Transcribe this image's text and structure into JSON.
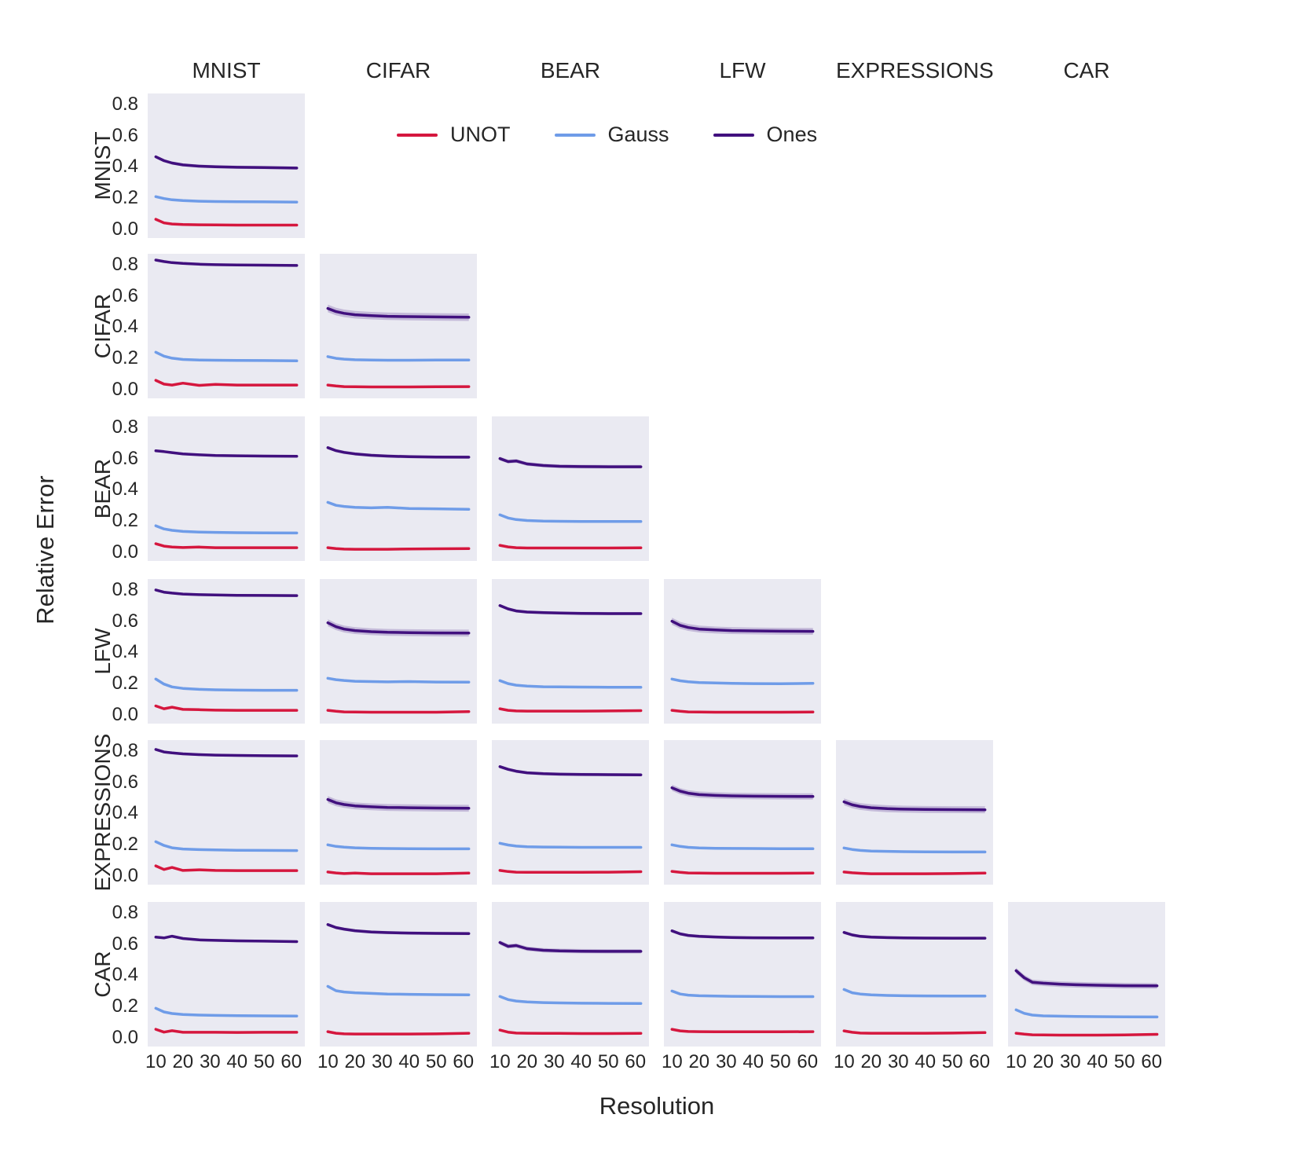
{
  "figure_title": "",
  "legend": [
    {
      "label": "UNOT",
      "color": "#d5173e"
    },
    {
      "label": "Gauss",
      "color": "#6f9ce8"
    },
    {
      "label": "Ones",
      "color": "#41107e"
    }
  ],
  "style": {
    "plot_background": "#eaeaf2",
    "page_background": "#ffffff",
    "text_color": "#262626",
    "band_opacity": 0.22,
    "line_width": 3.5
  },
  "chart_data": {
    "type": "line",
    "x_label": "Resolution",
    "y_label": "Relative Error",
    "columns": [
      "MNIST",
      "CIFAR",
      "BEAR",
      "LFW",
      "EXPRESSIONS",
      "CAR"
    ],
    "rows": [
      "MNIST",
      "CIFAR",
      "BEAR",
      "LFW",
      "EXPRESSIONS",
      "CAR"
    ],
    "grid": false,
    "legend_position": "top-center",
    "xlim": [
      7,
      65
    ],
    "ylim": [
      -0.055,
      0.87
    ],
    "x_ticks": [
      {
        "label": "10",
        "value": 10
      },
      {
        "label": "20",
        "value": 20
      },
      {
        "label": "30",
        "value": 30
      },
      {
        "label": "40",
        "value": 40
      },
      {
        "label": "50",
        "value": 50
      },
      {
        "label": "60",
        "value": 60
      }
    ],
    "y_ticks": [
      {
        "label": "0.8",
        "value": 0.8
      },
      {
        "label": "0.6",
        "value": 0.6
      },
      {
        "label": "0.4",
        "value": 0.4
      },
      {
        "label": "0.2",
        "value": 0.2
      },
      {
        "label": "0.0",
        "value": 0.0
      }
    ],
    "x": [
      10,
      13,
      16,
      20,
      26,
      32,
      40,
      50,
      62
    ],
    "cells": [
      {
        "row": "MNIST",
        "col": "MNIST",
        "band": 0.01,
        "UNOT": [
          0.065,
          0.042,
          0.035,
          0.032,
          0.03,
          0.029,
          0.028,
          0.028,
          0.028
        ],
        "Gauss": [
          0.21,
          0.198,
          0.19,
          0.185,
          0.181,
          0.179,
          0.178,
          0.177,
          0.175
        ],
        "Ones": [
          0.465,
          0.44,
          0.425,
          0.413,
          0.405,
          0.401,
          0.398,
          0.396,
          0.393
        ]
      },
      {
        "row": "CIFAR",
        "col": "MNIST",
        "band": 0.008,
        "UNOT": [
          0.06,
          0.036,
          0.03,
          0.042,
          0.028,
          0.034,
          0.03,
          0.03,
          0.03
        ],
        "Gauss": [
          0.24,
          0.215,
          0.202,
          0.194,
          0.19,
          0.189,
          0.188,
          0.187,
          0.185
        ],
        "Ones": [
          0.83,
          0.82,
          0.813,
          0.808,
          0.803,
          0.8,
          0.798,
          0.797,
          0.795
        ]
      },
      {
        "row": "CIFAR",
        "col": "CIFAR",
        "band": 0.024,
        "UNOT": [
          0.03,
          0.024,
          0.02,
          0.019,
          0.018,
          0.018,
          0.018,
          0.019,
          0.02
        ],
        "Gauss": [
          0.212,
          0.201,
          0.196,
          0.192,
          0.19,
          0.189,
          0.189,
          0.19,
          0.19
        ],
        "Ones": [
          0.52,
          0.5,
          0.489,
          0.48,
          0.474,
          0.47,
          0.468,
          0.466,
          0.464
        ]
      },
      {
        "row": "BEAR",
        "col": "MNIST",
        "band": 0.008,
        "UNOT": [
          0.055,
          0.04,
          0.034,
          0.031,
          0.034,
          0.03,
          0.03,
          0.03,
          0.03
        ],
        "Gauss": [
          0.17,
          0.15,
          0.141,
          0.134,
          0.13,
          0.128,
          0.126,
          0.125,
          0.124
        ],
        "Ones": [
          0.65,
          0.645,
          0.638,
          0.63,
          0.624,
          0.62,
          0.618,
          0.616,
          0.615
        ]
      },
      {
        "row": "BEAR",
        "col": "CIFAR",
        "band": 0.01,
        "UNOT": [
          0.03,
          0.024,
          0.021,
          0.02,
          0.02,
          0.02,
          0.022,
          0.023,
          0.024
        ],
        "Gauss": [
          0.32,
          0.301,
          0.294,
          0.288,
          0.285,
          0.288,
          0.281,
          0.279,
          0.276
        ],
        "Ones": [
          0.67,
          0.651,
          0.64,
          0.63,
          0.621,
          0.616,
          0.612,
          0.61,
          0.609
        ]
      },
      {
        "row": "BEAR",
        "col": "BEAR",
        "band": 0.012,
        "UNOT": [
          0.045,
          0.035,
          0.03,
          0.028,
          0.028,
          0.028,
          0.028,
          0.028,
          0.029
        ],
        "Gauss": [
          0.24,
          0.22,
          0.21,
          0.204,
          0.2,
          0.199,
          0.198,
          0.198,
          0.198
        ],
        "Ones": [
          0.6,
          0.581,
          0.585,
          0.566,
          0.556,
          0.551,
          0.549,
          0.548,
          0.548
        ]
      },
      {
        "row": "LFW",
        "col": "MNIST",
        "band": 0.008,
        "UNOT": [
          0.058,
          0.04,
          0.05,
          0.036,
          0.034,
          0.031,
          0.03,
          0.03,
          0.03
        ],
        "Gauss": [
          0.23,
          0.198,
          0.18,
          0.17,
          0.164,
          0.161,
          0.159,
          0.158,
          0.158
        ],
        "Ones": [
          0.8,
          0.786,
          0.78,
          0.774,
          0.77,
          0.768,
          0.766,
          0.765,
          0.764
        ]
      },
      {
        "row": "LFW",
        "col": "CIFAR",
        "band": 0.022,
        "UNOT": [
          0.03,
          0.024,
          0.02,
          0.019,
          0.018,
          0.018,
          0.018,
          0.018,
          0.022
        ],
        "Gauss": [
          0.235,
          0.226,
          0.221,
          0.216,
          0.214,
          0.212,
          0.214,
          0.211,
          0.21
        ],
        "Ones": [
          0.59,
          0.565,
          0.55,
          0.54,
          0.533,
          0.529,
          0.527,
          0.525,
          0.524
        ]
      },
      {
        "row": "LFW",
        "col": "BEAR",
        "band": 0.01,
        "UNOT": [
          0.04,
          0.03,
          0.026,
          0.025,
          0.025,
          0.025,
          0.025,
          0.026,
          0.028
        ],
        "Gauss": [
          0.22,
          0.201,
          0.191,
          0.185,
          0.181,
          0.18,
          0.179,
          0.178,
          0.178
        ],
        "Ones": [
          0.7,
          0.679,
          0.666,
          0.659,
          0.655,
          0.653,
          0.65,
          0.649,
          0.649
        ]
      },
      {
        "row": "LFW",
        "col": "LFW",
        "band": 0.022,
        "UNOT": [
          0.03,
          0.024,
          0.02,
          0.019,
          0.018,
          0.018,
          0.018,
          0.018,
          0.019
        ],
        "Gauss": [
          0.23,
          0.219,
          0.213,
          0.208,
          0.205,
          0.203,
          0.201,
          0.2,
          0.203
        ],
        "Ones": [
          0.6,
          0.574,
          0.56,
          0.55,
          0.544,
          0.54,
          0.538,
          0.536,
          0.535
        ]
      },
      {
        "row": "EXPRESSIONS",
        "col": "MNIST",
        "band": 0.008,
        "UNOT": [
          0.065,
          0.042,
          0.055,
          0.036,
          0.04,
          0.036,
          0.035,
          0.035,
          0.035
        ],
        "Gauss": [
          0.22,
          0.196,
          0.181,
          0.173,
          0.169,
          0.167,
          0.165,
          0.164,
          0.163
        ],
        "Ones": [
          0.81,
          0.794,
          0.788,
          0.782,
          0.777,
          0.774,
          0.772,
          0.77,
          0.769
        ]
      },
      {
        "row": "EXPRESSIONS",
        "col": "CIFAR",
        "band": 0.022,
        "UNOT": [
          0.026,
          0.02,
          0.016,
          0.019,
          0.015,
          0.015,
          0.015,
          0.015,
          0.019
        ],
        "Gauss": [
          0.2,
          0.19,
          0.185,
          0.181,
          0.178,
          0.176,
          0.175,
          0.174,
          0.174
        ],
        "Ones": [
          0.49,
          0.469,
          0.458,
          0.449,
          0.443,
          0.439,
          0.437,
          0.435,
          0.434
        ]
      },
      {
        "row": "EXPRESSIONS",
        "col": "BEAR",
        "band": 0.01,
        "UNOT": [
          0.036,
          0.029,
          0.025,
          0.024,
          0.024,
          0.024,
          0.024,
          0.025,
          0.028
        ],
        "Gauss": [
          0.21,
          0.199,
          0.192,
          0.188,
          0.186,
          0.185,
          0.184,
          0.184,
          0.184
        ],
        "Ones": [
          0.7,
          0.683,
          0.671,
          0.661,
          0.655,
          0.652,
          0.65,
          0.649,
          0.648
        ]
      },
      {
        "row": "EXPRESSIONS",
        "col": "LFW",
        "band": 0.02,
        "UNOT": [
          0.03,
          0.024,
          0.02,
          0.019,
          0.018,
          0.018,
          0.018,
          0.018,
          0.019
        ],
        "Gauss": [
          0.2,
          0.19,
          0.184,
          0.18,
          0.178,
          0.177,
          0.176,
          0.175,
          0.175
        ],
        "Ones": [
          0.565,
          0.543,
          0.53,
          0.521,
          0.516,
          0.513,
          0.511,
          0.51,
          0.509
        ]
      },
      {
        "row": "EXPRESSIONS",
        "col": "EXPRESSIONS",
        "band": 0.022,
        "UNOT": [
          0.026,
          0.021,
          0.018,
          0.015,
          0.015,
          0.015,
          0.015,
          0.016,
          0.019
        ],
        "Gauss": [
          0.18,
          0.17,
          0.164,
          0.16,
          0.158,
          0.156,
          0.155,
          0.154,
          0.154
        ],
        "Ones": [
          0.475,
          0.456,
          0.445,
          0.437,
          0.431,
          0.428,
          0.426,
          0.425,
          0.424
        ]
      },
      {
        "row": "CAR",
        "col": "MNIST",
        "band": 0.008,
        "UNOT": [
          0.055,
          0.037,
          0.046,
          0.036,
          0.036,
          0.036,
          0.035,
          0.036,
          0.036
        ],
        "Gauss": [
          0.19,
          0.166,
          0.156,
          0.15,
          0.146,
          0.144,
          0.142,
          0.141,
          0.14
        ],
        "Ones": [
          0.645,
          0.64,
          0.651,
          0.636,
          0.627,
          0.624,
          0.621,
          0.619,
          0.616
        ]
      },
      {
        "row": "CAR",
        "col": "CIFAR",
        "band": 0.01,
        "UNOT": [
          0.04,
          0.03,
          0.026,
          0.025,
          0.025,
          0.025,
          0.025,
          0.026,
          0.03
        ],
        "Gauss": [
          0.33,
          0.302,
          0.294,
          0.289,
          0.285,
          0.281,
          0.279,
          0.277,
          0.276
        ],
        "Ones": [
          0.725,
          0.706,
          0.696,
          0.686,
          0.678,
          0.674,
          0.671,
          0.669,
          0.668
        ]
      },
      {
        "row": "CAR",
        "col": "BEAR",
        "band": 0.014,
        "UNOT": [
          0.05,
          0.037,
          0.031,
          0.03,
          0.029,
          0.029,
          0.028,
          0.028,
          0.029
        ],
        "Gauss": [
          0.265,
          0.245,
          0.236,
          0.23,
          0.226,
          0.224,
          0.222,
          0.221,
          0.22
        ],
        "Ones": [
          0.61,
          0.586,
          0.591,
          0.571,
          0.561,
          0.557,
          0.555,
          0.554,
          0.554
        ]
      },
      {
        "row": "CAR",
        "col": "LFW",
        "band": 0.01,
        "UNOT": [
          0.055,
          0.045,
          0.041,
          0.04,
          0.039,
          0.039,
          0.039,
          0.039,
          0.04
        ],
        "Gauss": [
          0.3,
          0.281,
          0.274,
          0.27,
          0.268,
          0.266,
          0.265,
          0.264,
          0.264
        ],
        "Ones": [
          0.685,
          0.666,
          0.656,
          0.65,
          0.646,
          0.643,
          0.641,
          0.64,
          0.64
        ]
      },
      {
        "row": "CAR",
        "col": "EXPRESSIONS",
        "band": 0.01,
        "UNOT": [
          0.045,
          0.036,
          0.031,
          0.03,
          0.03,
          0.03,
          0.03,
          0.031,
          0.034
        ],
        "Gauss": [
          0.31,
          0.289,
          0.281,
          0.276,
          0.272,
          0.27,
          0.269,
          0.268,
          0.268
        ],
        "Ones": [
          0.675,
          0.659,
          0.65,
          0.645,
          0.642,
          0.64,
          0.639,
          0.638,
          0.638
        ]
      },
      {
        "row": "CAR",
        "col": "CAR",
        "band": 0.018,
        "UNOT": [
          0.03,
          0.024,
          0.02,
          0.019,
          0.018,
          0.018,
          0.018,
          0.019,
          0.023
        ],
        "Gauss": [
          0.18,
          0.157,
          0.146,
          0.141,
          0.139,
          0.137,
          0.136,
          0.135,
          0.134
        ],
        "Ones": [
          0.43,
          0.385,
          0.356,
          0.35,
          0.344,
          0.34,
          0.337,
          0.334,
          0.333
        ]
      }
    ]
  }
}
